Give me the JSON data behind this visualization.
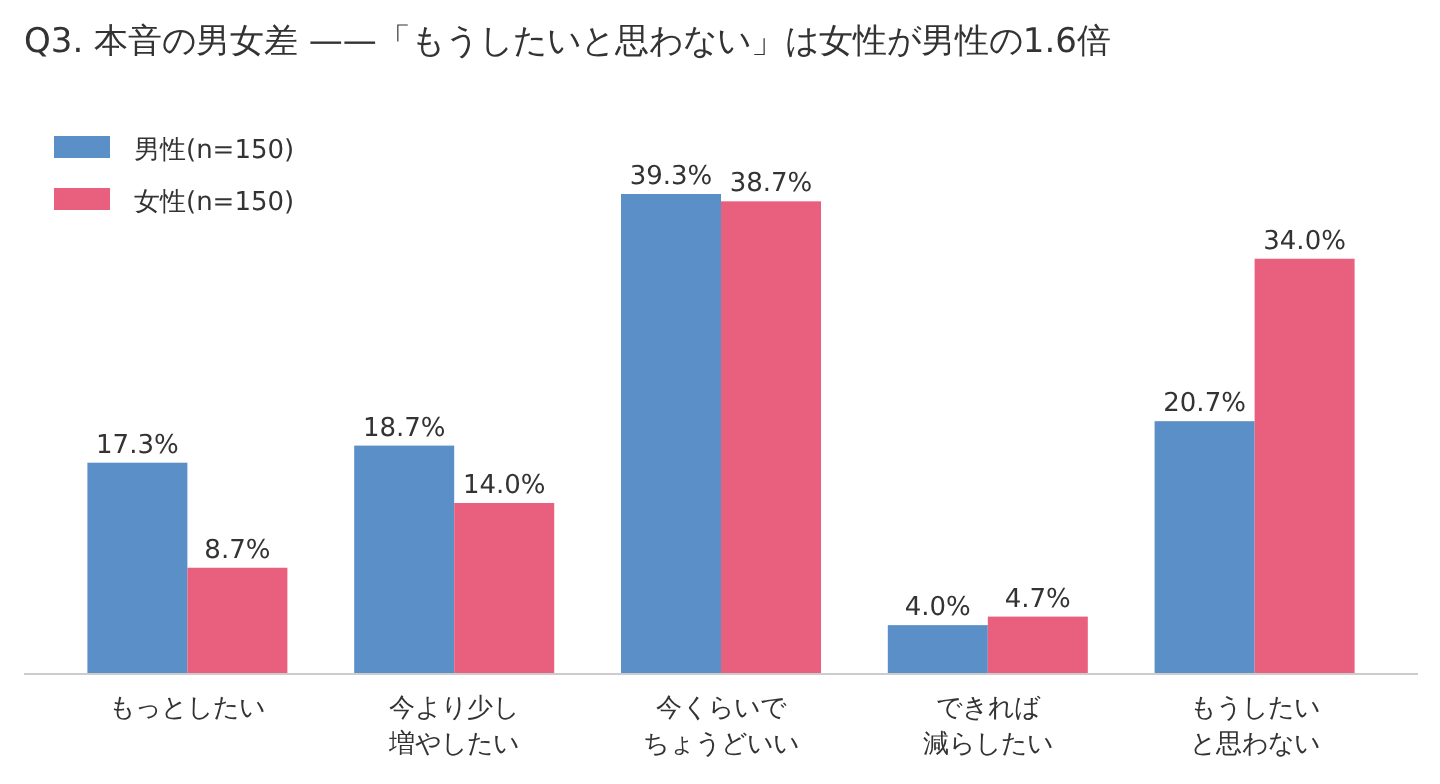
{
  "chart_data": {
    "type": "bar",
    "title": "Q3. 本音の男女差 ——「もうしたいと思わない」は女性が男性の1.6倍",
    "categories": [
      "もっとしたい",
      "今より少し増やしたい",
      "今くらいでちょうどいい",
      "できれば減らしたい",
      "もうしたいと思わない"
    ],
    "series": [
      {
        "name": "男性(n=150)",
        "color": "#5b8fc7",
        "values": [
          17.3,
          18.7,
          39.3,
          4.0,
          20.7
        ],
        "value_labels": [
          "17.3%",
          "18.7%",
          "39.3%",
          "4.0%",
          "20.7%"
        ]
      },
      {
        "name": "女性(n=150)",
        "color": "#e8607e",
        "values": [
          8.7,
          14.0,
          38.7,
          4.7,
          34.0
        ],
        "value_labels": [
          "8.7%",
          "14.0%",
          "38.7%",
          "4.7%",
          "34.0%"
        ]
      }
    ],
    "legend": "top left"
  }
}
